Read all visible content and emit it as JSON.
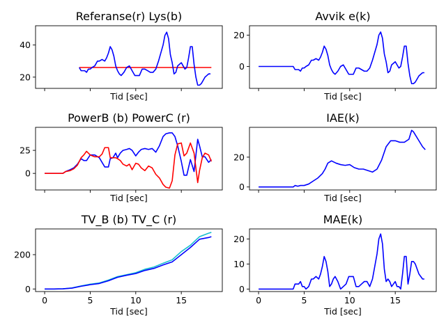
{
  "colors": {
    "blue": "#0000ff",
    "red": "#ff0000",
    "cyan": "#17becf"
  },
  "chart_data": [
    {
      "id": "ref-lys",
      "type": "line",
      "title": "Referanse(r) Lys(b)",
      "xlabel": "Tid [sec]",
      "xlim": [
        -1,
        19.5
      ],
      "ylim": [
        13,
        52
      ],
      "yticks": [
        20,
        40
      ],
      "xticks": [
        0,
        5,
        10,
        15
      ],
      "show_xticklabels": false,
      "series": [
        {
          "color": "red",
          "x": [
            3.8,
            18.3
          ],
          "y": [
            26,
            26
          ]
        },
        {
          "color": "blue",
          "x": [
            3.8,
            4.0,
            4.2,
            4.4,
            4.6,
            4.8,
            5.0,
            5.2,
            5.5,
            5.8,
            6.0,
            6.3,
            6.6,
            6.8,
            7.0,
            7.2,
            7.4,
            7.6,
            7.8,
            8.0,
            8.2,
            8.4,
            8.7,
            9.0,
            9.3,
            9.6,
            9.9,
            10.1,
            10.4,
            10.7,
            11.0,
            11.3,
            11.6,
            11.9,
            12.2,
            12.5,
            12.8,
            13.0,
            13.2,
            13.4,
            13.6,
            13.8,
            14.0,
            14.2,
            14.4,
            14.6,
            14.8,
            15.0,
            15.2,
            15.4,
            15.6,
            15.8,
            16.0,
            16.2,
            16.4,
            16.6,
            16.8,
            17.0,
            17.2,
            17.4,
            17.6,
            17.8,
            18.0,
            18.2
          ],
          "y": [
            26,
            24,
            24,
            24,
            23,
            25,
            25,
            26,
            27,
            30,
            30,
            31,
            30,
            32,
            35,
            39,
            37,
            33,
            27,
            24,
            22,
            21,
            23,
            26,
            27,
            24,
            21,
            21,
            21,
            25,
            25,
            24,
            23,
            23,
            25,
            30,
            36,
            40,
            46,
            48,
            44,
            34,
            29,
            22,
            23,
            27,
            28,
            29,
            27,
            25,
            26,
            32,
            39,
            39,
            28,
            20,
            15,
            15,
            16,
            18,
            20,
            21,
            22,
            22
          ]
        }
      ]
    },
    {
      "id": "avvik",
      "type": "line",
      "title": "Avvik e(k)",
      "xlabel": "Tid [sec]",
      "xlim": [
        -1,
        19.5
      ],
      "ylim": [
        -14,
        26
      ],
      "yticks": [
        0,
        20
      ],
      "xticks": [
        0,
        5,
        10,
        15
      ],
      "show_xticklabels": false,
      "series": [
        {
          "color": "blue",
          "x": [
            0,
            1,
            2,
            3,
            3.8,
            4.0,
            4.2,
            4.4,
            4.6,
            4.8,
            5.0,
            5.2,
            5.5,
            5.8,
            6.0,
            6.3,
            6.6,
            6.8,
            7.0,
            7.2,
            7.4,
            7.6,
            7.8,
            8.0,
            8.2,
            8.4,
            8.7,
            9.0,
            9.3,
            9.6,
            9.9,
            10.1,
            10.4,
            10.7,
            11.0,
            11.3,
            11.6,
            11.9,
            12.2,
            12.5,
            12.8,
            13.0,
            13.2,
            13.4,
            13.6,
            13.8,
            14.0,
            14.2,
            14.4,
            14.6,
            14.8,
            15.0,
            15.2,
            15.4,
            15.6,
            15.8,
            16.0,
            16.2,
            16.4,
            16.6,
            16.8,
            17.0,
            17.2,
            17.4,
            17.6,
            17.8,
            18.0,
            18.2
          ],
          "y": [
            0,
            0,
            0,
            0,
            0,
            -2,
            -2,
            -2,
            -3,
            -1,
            -1,
            0,
            1,
            4,
            4,
            5,
            4,
            6,
            9,
            13,
            11,
            7,
            1,
            -2,
            -4,
            -5,
            -3,
            0,
            1,
            -2,
            -5,
            -5,
            -5,
            -1,
            -1,
            -2,
            -3,
            -3,
            -1,
            4,
            10,
            14,
            20,
            22,
            18,
            8,
            3,
            -4,
            -3,
            1,
            2,
            3,
            1,
            -1,
            0,
            6,
            13,
            13,
            2,
            -6,
            -11,
            -11,
            -10,
            -8,
            -6,
            -5,
            -4,
            -4
          ]
        }
      ]
    },
    {
      "id": "power",
      "type": "line",
      "title": "PowerB (b) PowerC (r)",
      "xlabel": "Tid [sec]",
      "xlim": [
        -1,
        19.5
      ],
      "ylim": [
        -18,
        50
      ],
      "yticks": [
        0,
        25
      ],
      "xticks": [
        0,
        5,
        10,
        15
      ],
      "show_xticklabels": false,
      "series": [
        {
          "color": "blue",
          "x": [
            0,
            1,
            2,
            2.3,
            2.8,
            3.2,
            3.6,
            4.0,
            4.3,
            4.6,
            5.0,
            5.5,
            6.0,
            6.3,
            6.6,
            7.0,
            7.2,
            7.5,
            7.8,
            8.0,
            8.3,
            8.6,
            9.0,
            9.3,
            9.6,
            10.0,
            10.3,
            10.6,
            11.0,
            11.4,
            11.8,
            12.2,
            12.6,
            13.0,
            13.3,
            13.7,
            14.0,
            14.3,
            14.6,
            15.0,
            15.3,
            15.6,
            16.0,
            16.4,
            16.8,
            17.0,
            17.3,
            17.6,
            18.0,
            18.3
          ],
          "y": [
            0,
            0,
            0,
            2,
            4,
            6,
            10,
            16,
            14,
            14,
            20,
            20,
            17,
            12,
            7,
            7,
            16,
            17,
            22,
            17,
            22,
            25,
            26,
            27,
            25,
            19,
            23,
            26,
            27,
            26,
            27,
            23,
            30,
            40,
            43,
            44,
            44,
            40,
            30,
            13,
            -2,
            -2,
            15,
            2,
            37,
            30,
            18,
            18,
            12,
            15
          ]
        },
        {
          "color": "red",
          "x": [
            0,
            1,
            2,
            2.3,
            2.8,
            3.2,
            3.6,
            4.0,
            4.3,
            4.6,
            5.0,
            5.5,
            6.0,
            6.3,
            6.6,
            7.0,
            7.2,
            7.5,
            7.8,
            8.0,
            8.3,
            8.6,
            9.0,
            9.3,
            9.6,
            10.0,
            10.3,
            10.6,
            11.0,
            11.4,
            11.8,
            12.2,
            12.6,
            13.0,
            13.3,
            13.7,
            14.0,
            14.3,
            14.6,
            15.0,
            15.3,
            15.6,
            16.0,
            16.4,
            16.8,
            17.0,
            17.3,
            17.6,
            18.0,
            18.3
          ],
          "y": [
            0,
            0,
            0,
            2,
            3,
            5,
            9,
            17,
            20,
            24,
            20,
            18,
            18,
            21,
            28,
            28,
            17,
            17,
            17,
            16,
            14,
            10,
            8,
            10,
            4,
            11,
            10,
            6,
            3,
            8,
            6,
            -1,
            -5,
            -12,
            -15,
            -16,
            -8,
            20,
            32,
            33,
            19,
            22,
            33,
            22,
            -10,
            3,
            17,
            22,
            20,
            13
          ]
        }
      ]
    },
    {
      "id": "iae",
      "type": "line",
      "title": "IAE(k)",
      "xlabel": "Tid [sec]",
      "xlim": [
        -1,
        19.5
      ],
      "ylim": [
        -2,
        40
      ],
      "yticks": [
        0,
        20
      ],
      "xticks": [
        0,
        5,
        10,
        15
      ],
      "show_xticklabels": false,
      "series": [
        {
          "color": "blue",
          "x": [
            0,
            1,
            2,
            3,
            3.8,
            4.0,
            4.3,
            4.6,
            5.0,
            5.5,
            6.0,
            6.5,
            7.0,
            7.3,
            7.6,
            8.0,
            8.5,
            9.0,
            9.5,
            10.0,
            10.5,
            11.0,
            11.5,
            12.0,
            12.5,
            13.0,
            13.5,
            14.0,
            14.5,
            15.0,
            15.5,
            16.0,
            16.5,
            16.8,
            17.0,
            17.5,
            18.0,
            18.3
          ],
          "y": [
            0,
            0,
            0,
            0,
            0,
            1,
            0.5,
            1,
            1,
            2,
            4,
            6,
            9,
            12,
            16,
            17.5,
            16,
            15,
            14.5,
            15,
            13,
            12,
            12,
            11,
            10,
            12,
            18,
            27,
            31,
            31,
            30,
            30,
            32,
            38,
            37,
            32,
            27,
            25
          ]
        }
      ]
    },
    {
      "id": "tv",
      "type": "line",
      "title": "TV_B (b) TV_C (r)",
      "xlabel": "Tid [sec]",
      "xlim": [
        -1,
        19.5
      ],
      "ylim": [
        -15,
        350
      ],
      "yticks": [
        0,
        200
      ],
      "xticks": [
        0,
        5,
        10,
        15
      ],
      "show_xticklabels": true,
      "series": [
        {
          "color": "cyan",
          "x": [
            0,
            1,
            2,
            3,
            4,
            5,
            6,
            7,
            8,
            9,
            10,
            11,
            12,
            13,
            14,
            15,
            16,
            17,
            18,
            18.3
          ],
          "y": [
            0,
            0,
            1,
            6,
            18,
            28,
            35,
            52,
            72,
            83,
            95,
            115,
            128,
            150,
            170,
            218,
            255,
            305,
            325,
            330
          ]
        },
        {
          "color": "blue",
          "x": [
            0,
            1,
            2,
            3,
            4,
            5,
            6,
            7,
            8,
            9,
            10,
            11,
            12,
            13,
            14,
            15,
            16,
            17,
            18,
            18.3
          ],
          "y": [
            0,
            0,
            1,
            5,
            16,
            25,
            32,
            48,
            68,
            80,
            90,
            108,
            120,
            140,
            158,
            200,
            242,
            290,
            300,
            305
          ]
        }
      ]
    },
    {
      "id": "mae",
      "type": "line",
      "title": "MAE(k)",
      "xlabel": "Tid [sec]",
      "xlim": [
        -1,
        19.5
      ],
      "ylim": [
        -1,
        24
      ],
      "yticks": [
        0,
        10,
        20
      ],
      "xticks": [
        0,
        5,
        10,
        15
      ],
      "show_xticklabels": true,
      "series": [
        {
          "color": "blue",
          "x": [
            0,
            1,
            2,
            3,
            3.8,
            4.0,
            4.2,
            4.4,
            4.6,
            4.8,
            5.0,
            5.2,
            5.5,
            5.8,
            6.0,
            6.3,
            6.6,
            6.8,
            7.0,
            7.2,
            7.4,
            7.6,
            7.8,
            8.0,
            8.2,
            8.4,
            8.7,
            9.0,
            9.3,
            9.6,
            9.9,
            10.1,
            10.4,
            10.7,
            11.0,
            11.3,
            11.6,
            11.9,
            12.2,
            12.5,
            12.8,
            13.0,
            13.2,
            13.4,
            13.6,
            13.8,
            14.0,
            14.2,
            14.4,
            14.6,
            14.8,
            15.0,
            15.2,
            15.4,
            15.6,
            15.8,
            16.0,
            16.2,
            16.4,
            16.6,
            16.8,
            17.0,
            17.2,
            17.4,
            17.6,
            17.8,
            18.0,
            18.2
          ],
          "y": [
            0,
            0,
            0,
            0,
            0,
            2,
            2,
            2,
            3,
            1,
            1,
            0,
            1,
            4,
            4,
            5,
            4,
            6,
            9,
            13,
            11,
            7,
            1,
            2,
            4,
            5,
            3,
            0,
            1,
            2,
            5,
            5,
            5,
            1,
            1,
            2,
            3,
            3,
            1,
            4,
            10,
            14,
            20,
            22,
            18,
            8,
            3,
            4,
            3,
            1,
            2,
            3,
            1,
            1,
            0,
            6,
            13,
            13,
            2,
            6,
            11,
            11,
            10,
            8,
            6,
            5,
            4,
            4
          ]
        }
      ]
    }
  ]
}
